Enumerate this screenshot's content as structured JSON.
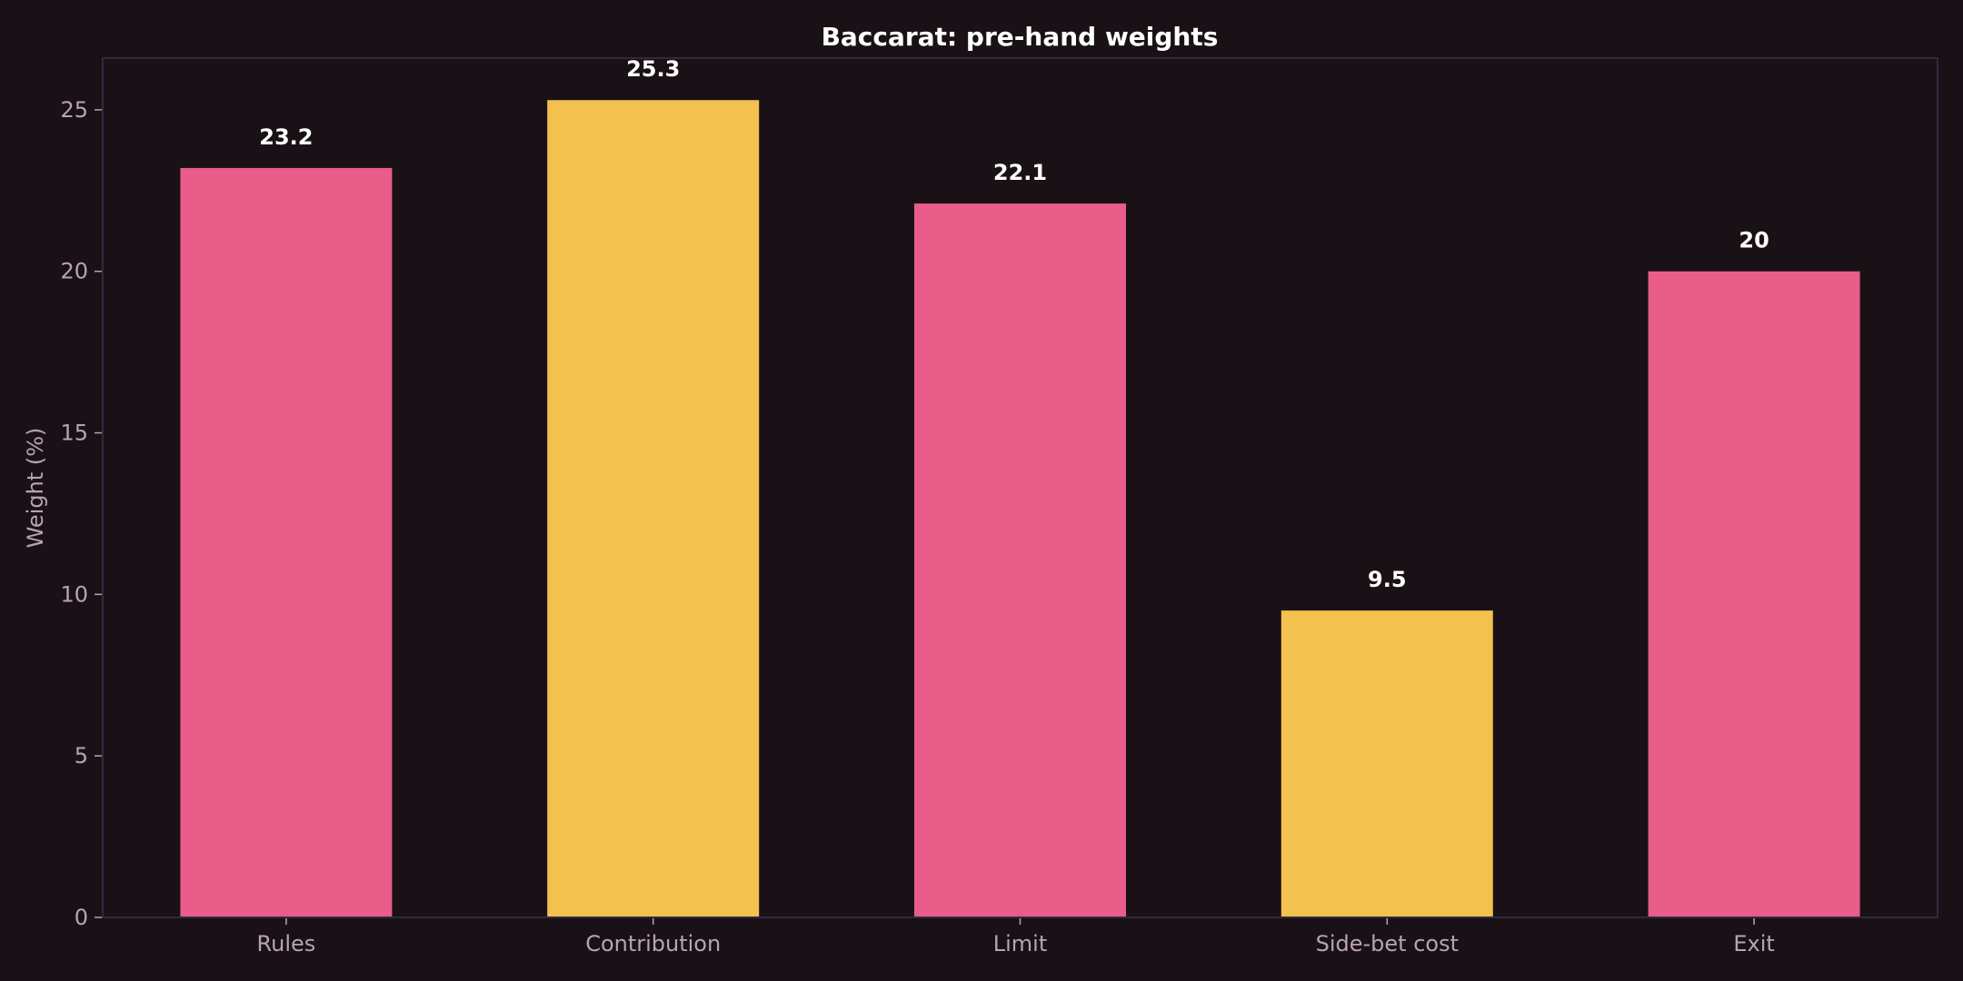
{
  "chart_data": {
    "type": "bar",
    "title": "Baccarat: pre-hand weights",
    "xlabel": "",
    "ylabel": "Weight (%)",
    "categories": [
      "Rules",
      "Contribution",
      "Limit",
      "Side-bet cost",
      "Exit"
    ],
    "values": [
      23.2,
      25.3,
      22.1,
      9.5,
      20
    ],
    "value_labels": [
      "23.2",
      "25.3",
      "22.1",
      "9.5",
      "20"
    ],
    "ylim": [
      0,
      26.6
    ],
    "yticks": [
      0,
      5,
      10,
      15,
      20,
      25
    ],
    "bar_colors": [
      "#e85d8a",
      "#f2c14e",
      "#e85d8a",
      "#f2c14e",
      "#e85d8a"
    ],
    "grid": false,
    "legend": "none"
  },
  "colors": {
    "background": "#1a1117",
    "frame": "#2e2a40",
    "text_muted": "#b8a3b2",
    "text_bright": "#ffffff"
  }
}
